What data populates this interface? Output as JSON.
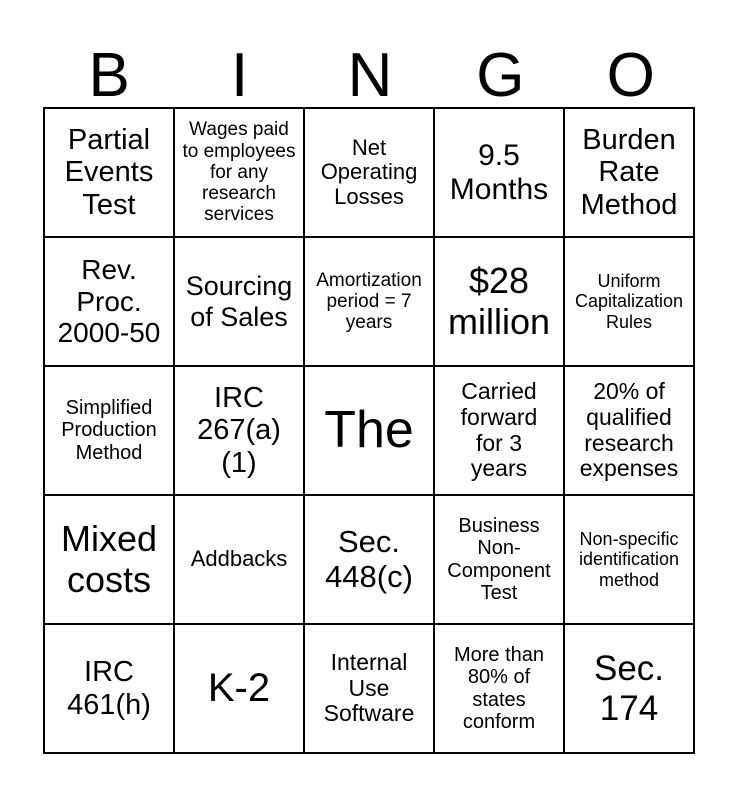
{
  "header": {
    "letters": [
      "B",
      "I",
      "N",
      "G",
      "O"
    ]
  },
  "card": {
    "rows": [
      {
        "cells": [
          "Partial\nEvents\nTest",
          "Wages paid\nto employees\nfor any\nresearch\nservices",
          "Net\nOperating\nLosses",
          "9.5\nMonths",
          "Burden\nRate\nMethod"
        ]
      },
      {
        "cells": [
          "Rev.\nProc.\n2000-50",
          "Sourcing\nof Sales",
          "Amortization\nperiod = 7\nyears",
          "$28\nmillion",
          "Uniform\nCapitalization\nRules"
        ]
      },
      {
        "cells": [
          "Simplified\nProduction\nMethod",
          "IRC\n267(a)\n(1)",
          "The",
          "Carried\nforward\nfor 3\nyears",
          "20% of\nqualified\nresearch\nexpenses"
        ]
      },
      {
        "cells": [
          "Mixed\ncosts",
          "Addbacks",
          "Sec.\n448(c)",
          "Business\nNon-\nComponent\nTest",
          "Non-specific\nidentification\nmethod"
        ]
      },
      {
        "cells": [
          "IRC\n461(h)",
          "K-2",
          "Internal\nUse\nSoftware",
          "More than\n80% of\nstates\nconform",
          "Sec.\n174"
        ]
      }
    ]
  },
  "colors": {
    "background": "#ffffff",
    "text": "#000000",
    "grid_line": "#000000"
  }
}
